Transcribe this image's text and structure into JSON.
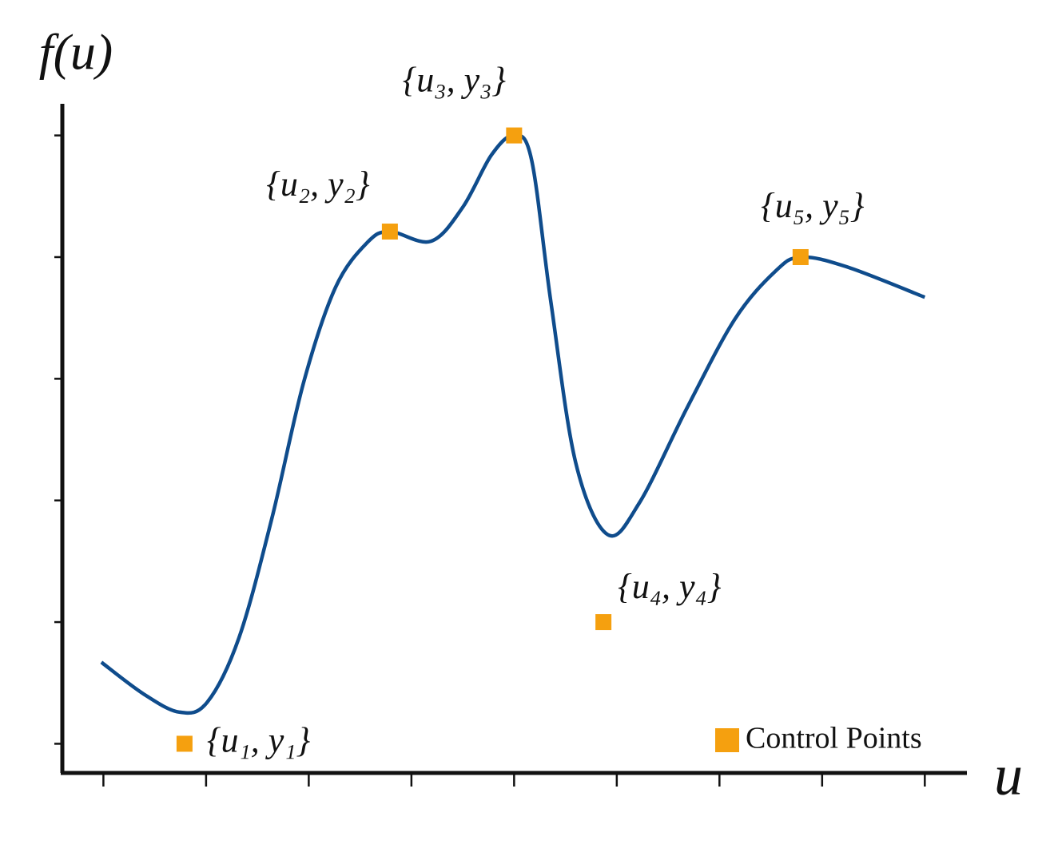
{
  "chart_data": {
    "type": "line",
    "x_label": "u",
    "y_label": "f(u)",
    "xlim": [
      -0.4,
      8.41
    ],
    "ylim": [
      -0.24,
      5.26
    ],
    "xticks": [
      0,
      1,
      2,
      3,
      4,
      5,
      6,
      7,
      8
    ],
    "yticks": [
      0,
      1,
      2,
      3,
      4,
      5
    ],
    "legend": "bottom-right",
    "series": [
      {
        "type": "line",
        "color": "#0f4c8c",
        "x": [
          -0.02,
          0.39,
          0.74,
          1.01,
          1.32,
          1.64,
          1.95,
          2.26,
          2.57,
          2.79,
          3.19,
          3.5,
          3.78,
          4.0,
          4.17,
          4.36,
          4.6,
          4.91,
          5.22,
          5.69,
          6.15,
          6.54,
          6.79,
          7.24,
          8.0
        ],
        "values": [
          0.67,
          0.41,
          0.26,
          0.34,
          0.87,
          1.85,
          2.97,
          3.75,
          4.12,
          4.21,
          4.13,
          4.41,
          4.84,
          5.0,
          4.8,
          3.62,
          2.31,
          1.72,
          1.98,
          2.77,
          3.49,
          3.88,
          4.0,
          3.92,
          3.67
        ]
      },
      {
        "type": "scatter",
        "name": "Control Points",
        "color": "#f5a00f",
        "marker": "square",
        "x": [
          0.79,
          2.79,
          4.0,
          4.87,
          6.79
        ],
        "values": [
          0,
          4.21,
          5.0,
          1.0,
          4.0
        ],
        "labels": [
          "{u₁, y₁}",
          "{u₂, y₂}",
          "{u₃, y₃}",
          "{u₄, y₄}",
          "{u₅, y₅}"
        ]
      }
    ]
  }
}
